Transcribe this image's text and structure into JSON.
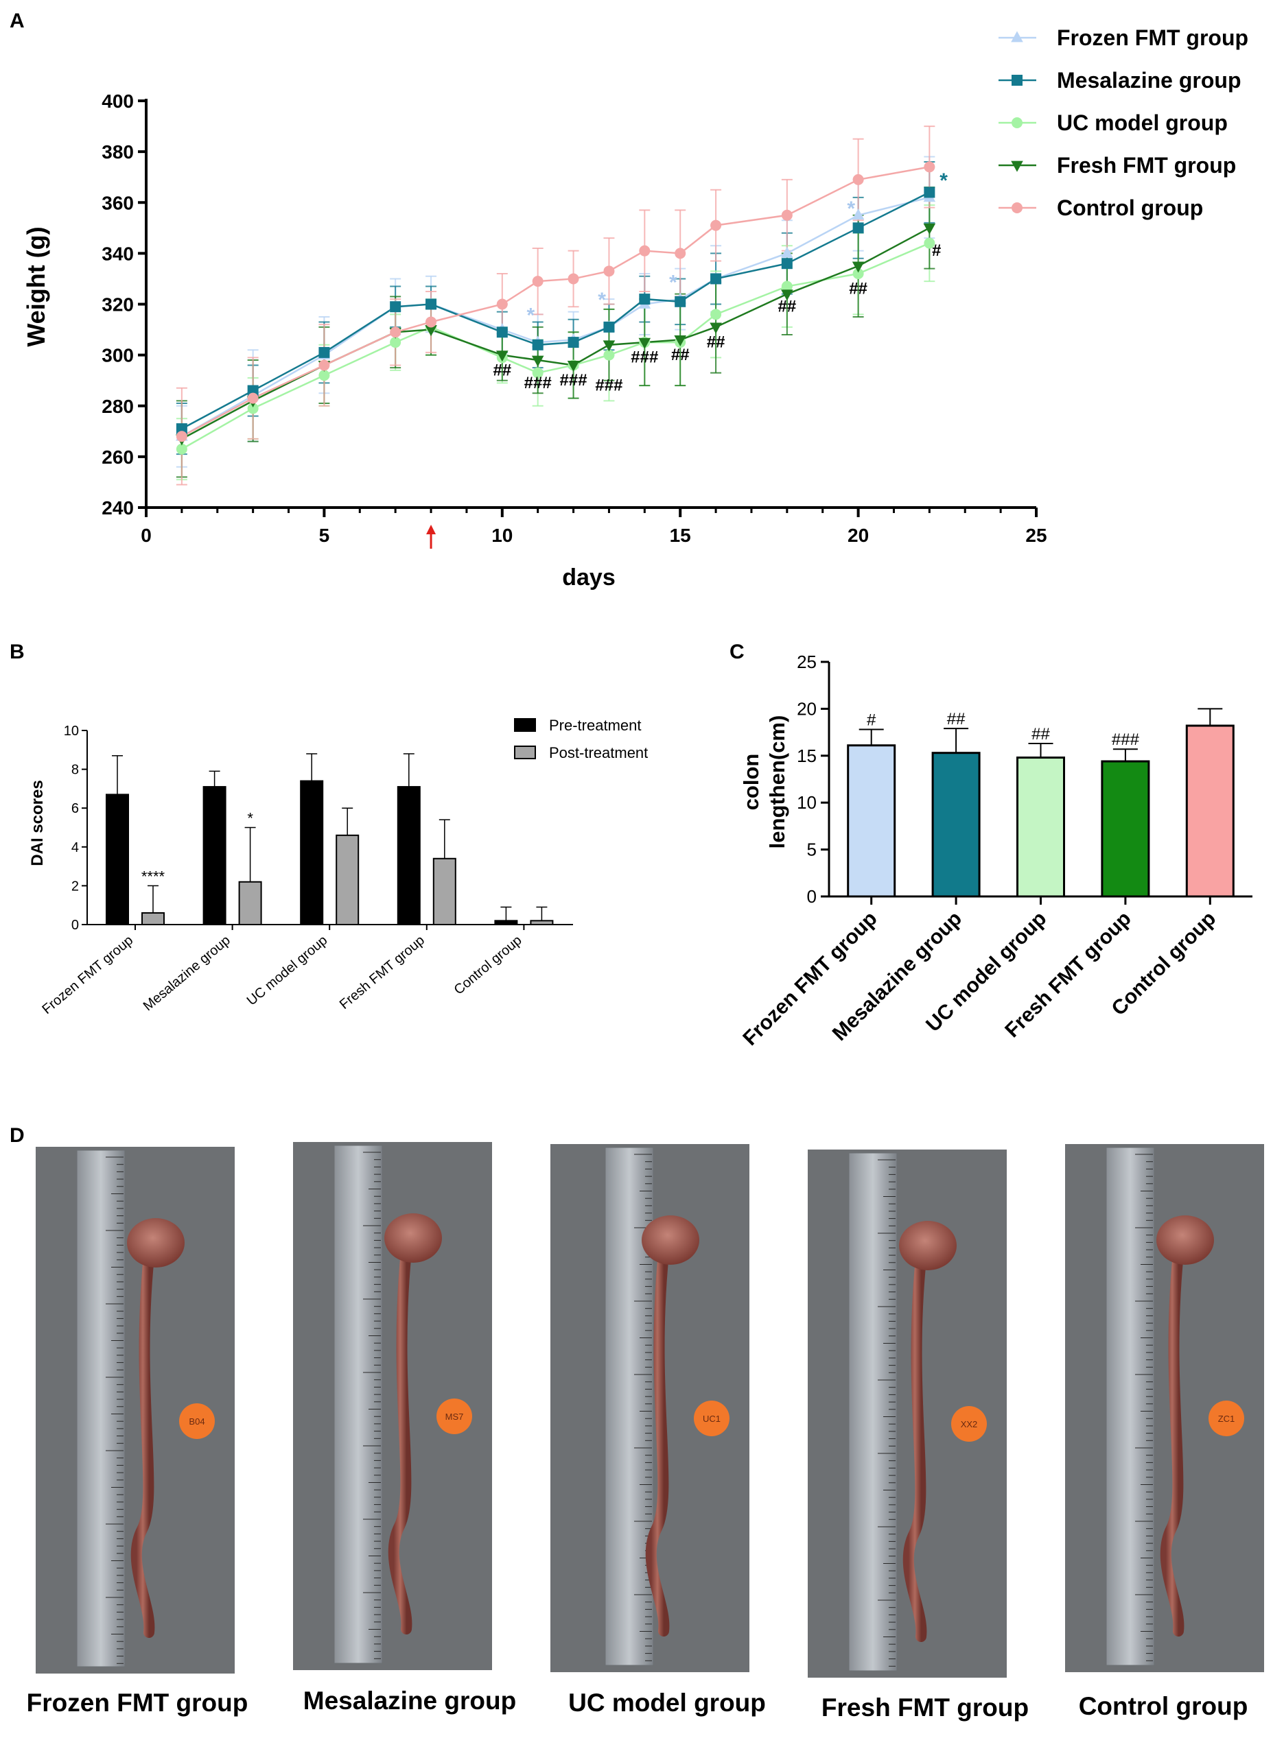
{
  "panels": {
    "A": "A",
    "B": "B",
    "C": "C",
    "D": "D"
  },
  "chart_data": [
    {
      "type": "line",
      "panel": "A",
      "xlabel": "days",
      "ylabel": "Weight (g)",
      "xlim": [
        0,
        25
      ],
      "ylim": [
        240,
        400
      ],
      "xticks": [
        0,
        5,
        10,
        15,
        20,
        25
      ],
      "yticks": [
        240,
        260,
        280,
        300,
        320,
        340,
        360,
        380,
        400
      ],
      "treatment_marker_day": 8,
      "legend": [
        "Frozen FMT group",
        "Mesalazine group",
        "UC model group",
        "Fresh FMT group",
        "Control group"
      ],
      "series": [
        {
          "name": "Frozen FMT group",
          "color": "#b9d4f5",
          "marker": "triangle-up",
          "x": [
            1,
            3,
            5,
            7,
            8,
            10,
            11,
            12,
            13,
            14,
            15,
            16,
            18,
            20,
            22
          ],
          "y": [
            268,
            284,
            300,
            319,
            320,
            310,
            305,
            306,
            311,
            320,
            322,
            330,
            340,
            355,
            362
          ],
          "err": [
            12,
            18,
            15,
            11,
            11,
            10,
            11,
            11,
            11,
            12,
            12,
            13,
            13,
            14,
            16
          ]
        },
        {
          "name": "Mesalazine group",
          "color": "#147a8f",
          "marker": "square",
          "x": [
            1,
            3,
            5,
            7,
            8,
            10,
            11,
            12,
            13,
            14,
            15,
            16,
            18,
            20,
            22
          ],
          "y": [
            271,
            286,
            301,
            319,
            320,
            309,
            304,
            305,
            311,
            322,
            321,
            330,
            336,
            350,
            364
          ],
          "err": [
            10,
            10,
            12,
            8,
            7,
            8,
            9,
            9,
            9,
            9,
            9,
            10,
            12,
            12,
            12
          ]
        },
        {
          "name": "UC model group",
          "color": "#a4f3a4",
          "marker": "circle",
          "x": [
            1,
            3,
            5,
            7,
            8,
            10,
            11,
            12,
            13,
            14,
            15,
            16,
            18,
            20,
            22
          ],
          "y": [
            263,
            279,
            292,
            305,
            311,
            299,
            293,
            296,
            300,
            305,
            305,
            316,
            327,
            332,
            344
          ],
          "err": [
            12,
            12,
            12,
            11,
            11,
            10,
            13,
            13,
            18,
            17,
            17,
            17,
            16,
            16,
            15
          ]
        },
        {
          "name": "Fresh FMT group",
          "color": "#1f7a1f",
          "marker": "triangle-down",
          "x": [
            1,
            3,
            5,
            7,
            8,
            10,
            11,
            12,
            13,
            14,
            15,
            16,
            18,
            20,
            22
          ],
          "y": [
            267,
            282,
            296,
            309,
            310,
            300,
            298,
            296,
            304,
            305,
            306,
            311,
            324,
            335,
            350
          ],
          "err": [
            15,
            16,
            15,
            14,
            10,
            10,
            13,
            13,
            14,
            17,
            18,
            18,
            16,
            20,
            16
          ]
        },
        {
          "name": "Control group",
          "color": "#f4a7a7",
          "marker": "circle",
          "x": [
            1,
            3,
            5,
            7,
            8,
            10,
            11,
            12,
            13,
            14,
            15,
            16,
            18,
            20,
            22
          ],
          "y": [
            268,
            283,
            296,
            309,
            313,
            320,
            329,
            330,
            333,
            341,
            340,
            351,
            355,
            369,
            374
          ],
          "err": [
            19,
            16,
            16,
            13,
            12,
            12,
            13,
            11,
            13,
            16,
            17,
            14,
            14,
            16,
            16
          ]
        }
      ],
      "annotations": [
        {
          "text": "##",
          "x": 10,
          "y": 292
        },
        {
          "text": "###",
          "x": 11,
          "y": 287
        },
        {
          "text": "###",
          "x": 12,
          "y": 288
        },
        {
          "text": "###",
          "x": 13,
          "y": 286
        },
        {
          "text": "###",
          "x": 14,
          "y": 297
        },
        {
          "text": "##",
          "x": 15,
          "y": 298
        },
        {
          "text": "##",
          "x": 16,
          "y": 303
        },
        {
          "text": "##",
          "x": 18,
          "y": 317
        },
        {
          "text": "##",
          "x": 20,
          "y": 324
        },
        {
          "text": "#",
          "x": 22.2,
          "y": 339
        },
        {
          "text": "*",
          "x": 22.4,
          "y": 366
        },
        {
          "text": "*",
          "x": 10.8,
          "y": 313
        },
        {
          "text": "*",
          "x": 12.8,
          "y": 319
        },
        {
          "text": "*",
          "x": 14.8,
          "y": 326
        },
        {
          "text": "*",
          "x": 19.8,
          "y": 355
        }
      ]
    },
    {
      "type": "bar",
      "panel": "B",
      "ylabel": "DAI scores",
      "ylim": [
        0,
        10
      ],
      "yticks": [
        0,
        2,
        4,
        6,
        8,
        10
      ],
      "categories": [
        "Frozen FMT group",
        "Mesalazine group",
        "UC model group",
        "Fresh FMT group",
        "Control group"
      ],
      "series": [
        {
          "name": "Pre-treatment",
          "color": "#000000",
          "values": [
            6.7,
            7.1,
            7.4,
            7.1,
            0.2
          ],
          "err": [
            2.0,
            0.8,
            1.4,
            1.7,
            0.7
          ]
        },
        {
          "name": "Post-treatment",
          "color": "#a6a6a6",
          "values": [
            0.6,
            2.2,
            4.6,
            3.4,
            0.2
          ],
          "err": [
            1.4,
            2.8,
            1.4,
            2.0,
            0.7
          ]
        }
      ],
      "significance": [
        "****",
        "*",
        "",
        "",
        ""
      ]
    },
    {
      "type": "bar",
      "panel": "C",
      "ylabel": "colon\nlengthen(cm)",
      "ylabel_lines": [
        "colon",
        "lengthen(cm)"
      ],
      "ylim": [
        0,
        25
      ],
      "yticks": [
        0,
        5,
        10,
        15,
        20,
        25
      ],
      "categories": [
        "Frozen FMT group",
        "Mesalazine group",
        "UC model group",
        "Fresh FMT group",
        "Control group"
      ],
      "values": [
        16.1,
        15.3,
        14.8,
        14.4,
        18.2
      ],
      "err": [
        1.7,
        2.6,
        1.5,
        1.3,
        1.8
      ],
      "colors": [
        "#c6dcf6",
        "#117a8b",
        "#c4f5c4",
        "#138a13",
        "#f9a3a3"
      ],
      "significance": [
        "#",
        "##",
        "##",
        "###",
        ""
      ]
    }
  ],
  "photos": {
    "captions": [
      "Frozen FMT group",
      "Mesalazine group",
      "UC model group",
      "Fresh FMT group",
      "Control group"
    ],
    "tags": [
      "B04",
      "MS7",
      "UC1",
      "XX2",
      "ZC1"
    ]
  }
}
